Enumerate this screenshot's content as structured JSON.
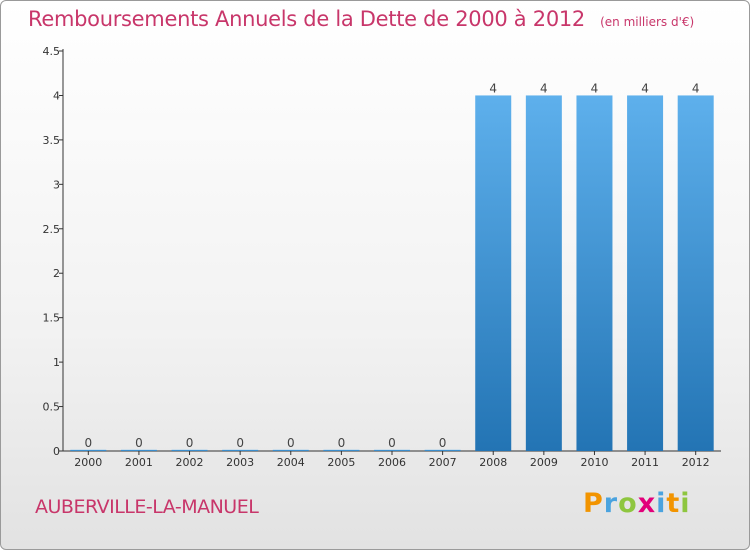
{
  "title": "Remboursements Annuels de la Dette de 2000 à 2012",
  "unit_note": "(en milliers d'€)",
  "commune": "AUBERVILLE-LA-MANUEL",
  "brand": {
    "letters": [
      "P",
      "r",
      "o",
      "x",
      "i",
      "t",
      "i"
    ],
    "colors": [
      "#f29400",
      "#4aa3df",
      "#8ec63f",
      "#e2007a",
      "#4aa3df",
      "#f29400",
      "#8ec63f"
    ]
  },
  "colors": {
    "title": "#c8366a",
    "bar_top": "#5eb0ec",
    "bar_bottom": "#2374b4"
  },
  "chart_data": {
    "type": "bar",
    "categories": [
      "2000",
      "2001",
      "2002",
      "2003",
      "2004",
      "2005",
      "2006",
      "2007",
      "2008",
      "2009",
      "2010",
      "2011",
      "2012"
    ],
    "values": [
      0,
      0,
      0,
      0,
      0,
      0,
      0,
      0,
      4,
      4,
      4,
      4,
      4
    ],
    "data_labels": [
      "0",
      "0",
      "0",
      "0",
      "0",
      "0",
      "0",
      "0",
      "4",
      "4",
      "4",
      "4",
      "4"
    ],
    "yticks": [
      0,
      0.5,
      1,
      1.5,
      2,
      2.5,
      3,
      3.5,
      4,
      4.5
    ],
    "ytick_labels": [
      "0",
      "0.5",
      "1",
      "1.5",
      "2",
      "2.5",
      "3",
      "3.5",
      "4",
      "4.5"
    ],
    "ylim": [
      0,
      4.5
    ],
    "grid": false,
    "legend": "none"
  }
}
